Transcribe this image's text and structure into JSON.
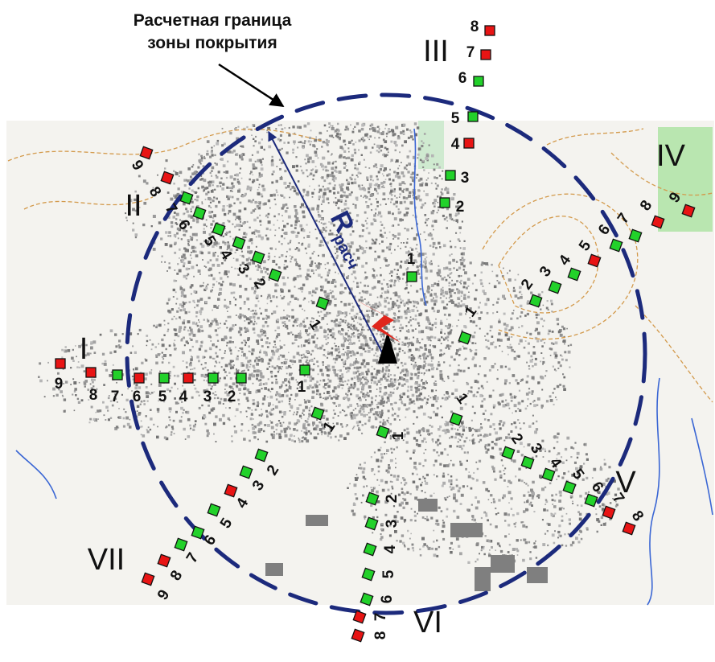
{
  "caption": {
    "line1": "Расчетная граница",
    "line2": "зоны покрытия"
  },
  "radius_label": {
    "main": "R",
    "subscript": "расч"
  },
  "colors": {
    "boundary": "#1c2a7c",
    "radius_arrow": "#1c2a7c",
    "point_green": "#22d12a",
    "point_red": "#e81414",
    "antenna": "#e0261c",
    "map_gray": "#8f8f8f",
    "contour": "#d39a4c",
    "water": "#3a66d4",
    "park": "#b9e6b0"
  },
  "legend_icons": [
    "antenna-icon",
    "transmitter-mast-icon"
  ],
  "routes": [
    {
      "id": "I",
      "points": [
        {
          "n": "1",
          "c": "green"
        },
        {
          "n": "2",
          "c": "green"
        },
        {
          "n": "3",
          "c": "green"
        },
        {
          "n": "4",
          "c": "red"
        },
        {
          "n": "5",
          "c": "green"
        },
        {
          "n": "6",
          "c": "red"
        },
        {
          "n": "7",
          "c": "green"
        },
        {
          "n": "8",
          "c": "red"
        },
        {
          "n": "9",
          "c": "red"
        }
      ]
    },
    {
      "id": "II",
      "points": [
        {
          "n": "1",
          "c": "green"
        },
        {
          "n": "2",
          "c": "green"
        },
        {
          "n": "3",
          "c": "green"
        },
        {
          "n": "4",
          "c": "green"
        },
        {
          "n": "5",
          "c": "green"
        },
        {
          "n": "6",
          "c": "green"
        },
        {
          "n": "7",
          "c": "green"
        },
        {
          "n": "8",
          "c": "red"
        },
        {
          "n": "9",
          "c": "red"
        }
      ]
    },
    {
      "id": "III",
      "points": [
        {
          "n": "1",
          "c": "green"
        },
        {
          "n": "2",
          "c": "green"
        },
        {
          "n": "3",
          "c": "green"
        },
        {
          "n": "4",
          "c": "red"
        },
        {
          "n": "5",
          "c": "green"
        },
        {
          "n": "6",
          "c": "green"
        },
        {
          "n": "7",
          "c": "red"
        },
        {
          "n": "8",
          "c": "red"
        }
      ]
    },
    {
      "id": "IV",
      "points": [
        {
          "n": "1",
          "c": "green"
        },
        {
          "n": "2",
          "c": "green"
        },
        {
          "n": "3",
          "c": "green"
        },
        {
          "n": "4",
          "c": "green"
        },
        {
          "n": "5",
          "c": "red"
        },
        {
          "n": "6",
          "c": "green"
        },
        {
          "n": "7",
          "c": "green"
        },
        {
          "n": "8",
          "c": "red"
        },
        {
          "n": "9",
          "c": "red"
        }
      ]
    },
    {
      "id": "V",
      "points": [
        {
          "n": "1",
          "c": "green"
        },
        {
          "n": "2",
          "c": "green"
        },
        {
          "n": "3",
          "c": "green"
        },
        {
          "n": "4",
          "c": "green"
        },
        {
          "n": "5",
          "c": "green"
        },
        {
          "n": "6",
          "c": "green"
        },
        {
          "n": "7",
          "c": "red"
        },
        {
          "n": "8",
          "c": "red"
        }
      ]
    },
    {
      "id": "VI",
      "points": [
        {
          "n": "1",
          "c": "green"
        },
        {
          "n": "2",
          "c": "green"
        },
        {
          "n": "3",
          "c": "green"
        },
        {
          "n": "4",
          "c": "green"
        },
        {
          "n": "5",
          "c": "green"
        },
        {
          "n": "6",
          "c": "green"
        },
        {
          "n": "7",
          "c": "red"
        },
        {
          "n": "8",
          "c": "red"
        }
      ]
    },
    {
      "id": "VII",
      "points": [
        {
          "n": "1",
          "c": "green"
        },
        {
          "n": "2",
          "c": "green"
        },
        {
          "n": "3",
          "c": "green"
        },
        {
          "n": "4",
          "c": "red"
        },
        {
          "n": "5",
          "c": "green"
        },
        {
          "n": "6",
          "c": "green"
        },
        {
          "n": "7",
          "c": "green"
        },
        {
          "n": "8",
          "c": "red"
        },
        {
          "n": "9",
          "c": "red"
        }
      ]
    }
  ]
}
